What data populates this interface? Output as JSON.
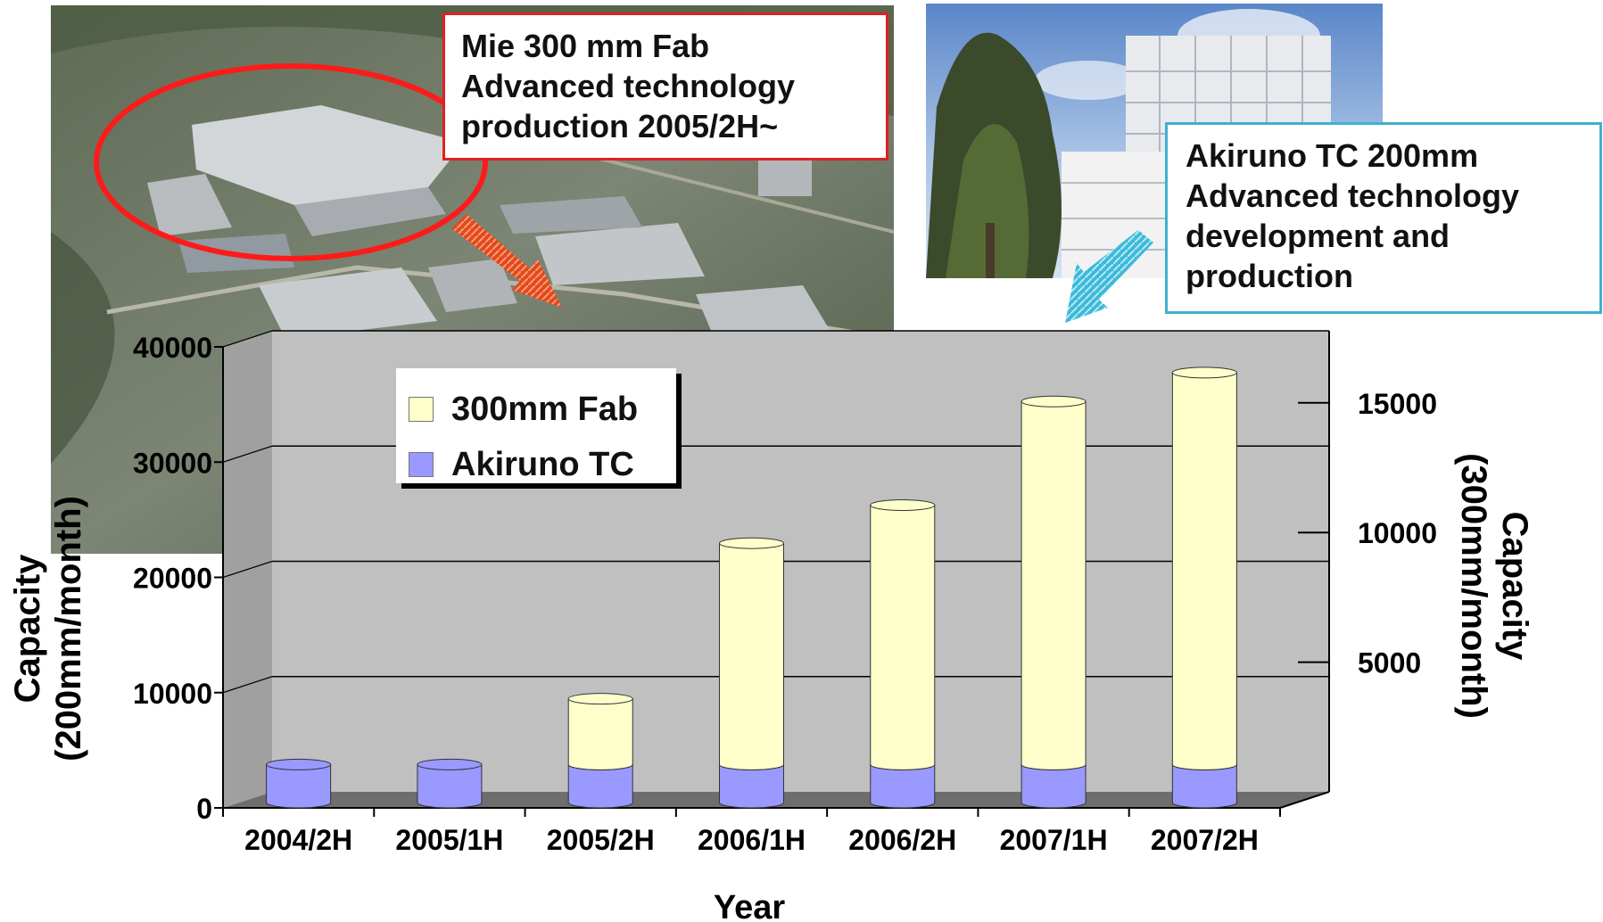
{
  "callouts": {
    "mie": [
      "Mie 300 mm Fab",
      "Advanced technology",
      "production 2005/2H~"
    ],
    "akiruno": [
      "Akiruno TC 200mm",
      "Advanced technology",
      "development and",
      "production"
    ]
  },
  "colors": {
    "fab_300mm": "#ffffcc",
    "akiruno_tc": "#9999ff",
    "plot_background": "#c0c0c0",
    "mie_callout": "#e02020",
    "akiruno_callout": "#40b0d0"
  },
  "chart_data": {
    "type": "bar",
    "style": "3d-stacked-cylinder",
    "categories": [
      "2004/2H",
      "2005/1H",
      "2005/2H",
      "2006/1H",
      "2006/2H",
      "2007/1H",
      "2007/2H"
    ],
    "series": [
      {
        "name": "Akiruno TC",
        "axis": "left",
        "values": [
          3300,
          3300,
          3300,
          3300,
          3300,
          3300,
          3300
        ]
      },
      {
        "name": "300mm Fab",
        "axis": "left",
        "values": [
          0,
          0,
          5700,
          19200,
          22500,
          31500,
          34000
        ]
      }
    ],
    "xlabel": "Year",
    "ylabel": "Capacity\n(200mm/month)",
    "y2label": "Capacity\n(300mm/month)",
    "ylim": [
      0,
      40000
    ],
    "y2lim": [
      0,
      17778
    ],
    "yticks": [
      "0",
      "10000",
      "20000",
      "30000",
      "40000"
    ],
    "y2ticks": [
      "5000",
      "10000",
      "15000"
    ],
    "grid": true,
    "legend": "top-left"
  }
}
